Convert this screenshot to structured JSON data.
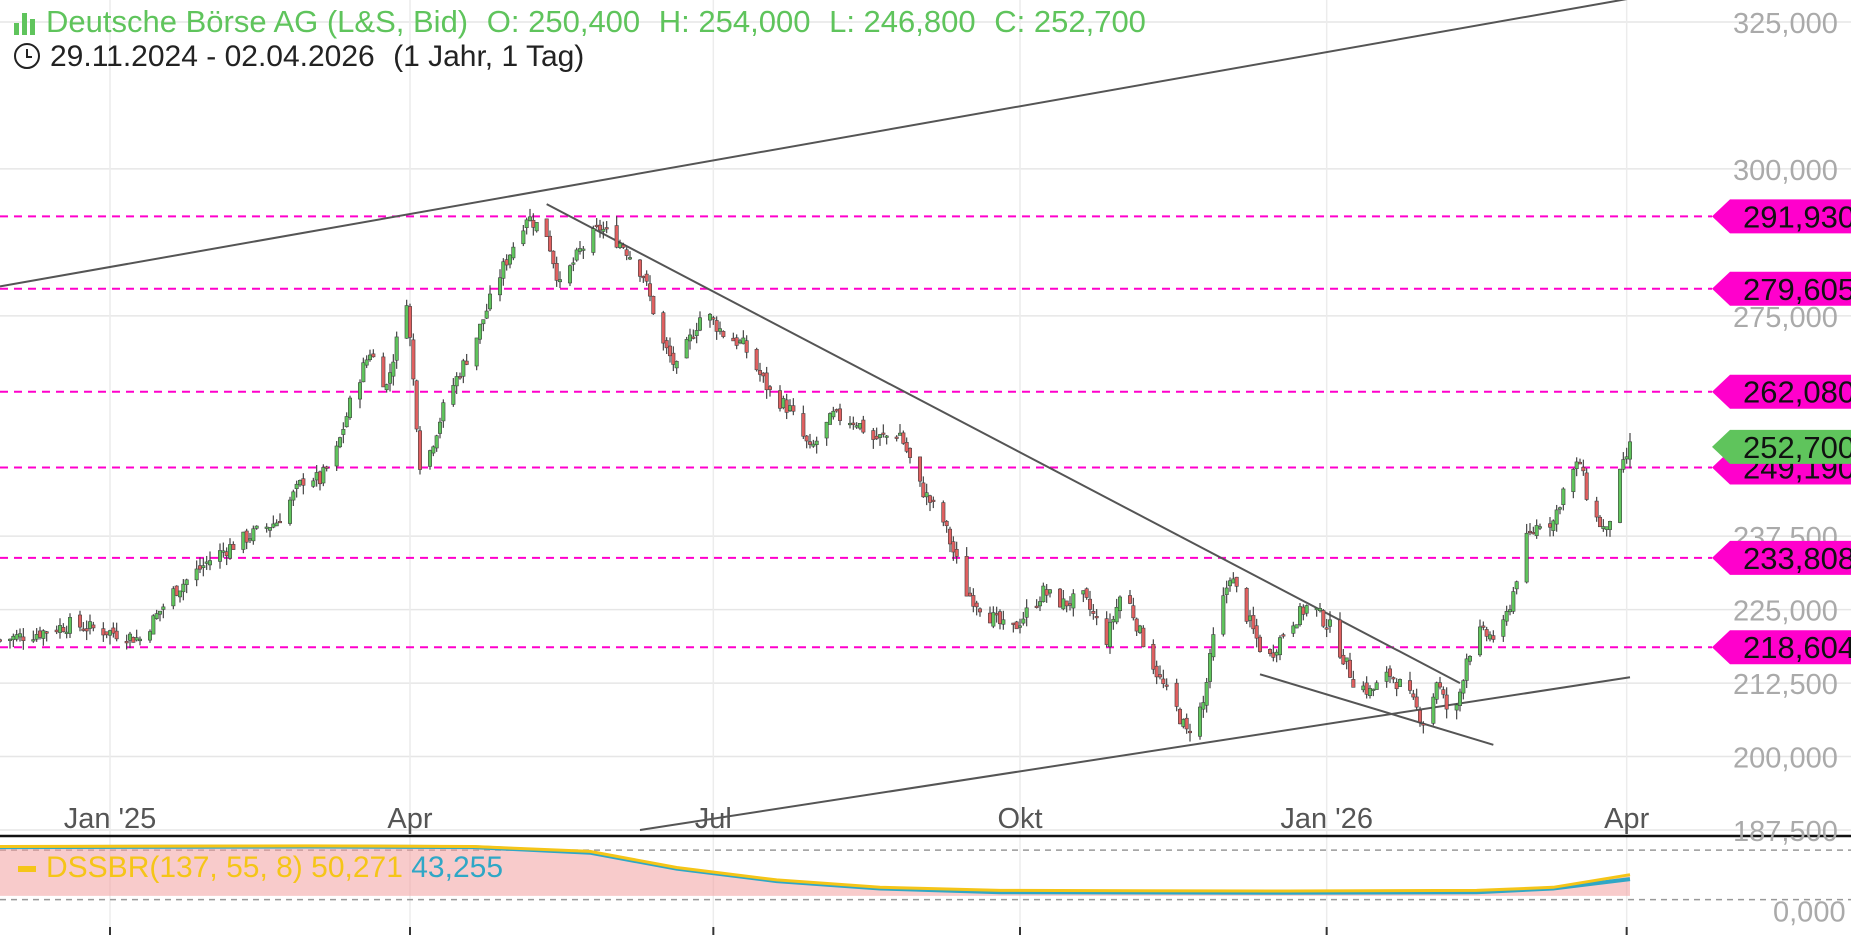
{
  "header": {
    "instrument": "Deutsche Börse AG (L&S, Bid)",
    "open": "O: 250,400",
    "high": "H: 254,000",
    "low": "L: 246,800",
    "close": "C: 252,700",
    "date_range": "29.11.2024 - 02.04.2026",
    "period": "(1 Jahr, 1 Tag)"
  },
  "indicator": {
    "label": "DSSBR(137, 55, 8)",
    "value1": "50,271",
    "value2": "43,255",
    "axis_labels": [
      "0,000"
    ]
  },
  "colors": {
    "up": "#5fc45c",
    "down": "#e06060",
    "level": "#ff00cc",
    "current": "#5fc45c",
    "trend": "#555555",
    "ind_yellow": "#f5c518",
    "ind_blue": "#2fa7c6",
    "ind_fill": "#f2a0a0"
  },
  "chart_data": {
    "type": "candlestick",
    "x_range": [
      "2024-11-29",
      "2026-04-02"
    ],
    "x_ticks": [
      {
        "date": "2025-01-01",
        "label": "Jan '25"
      },
      {
        "date": "2025-04-01",
        "label": "Apr"
      },
      {
        "date": "2025-07-01",
        "label": "Jul"
      },
      {
        "date": "2025-10-01",
        "label": "Okt"
      },
      {
        "date": "2026-01-01",
        "label": "Jan '26"
      },
      {
        "date": "2026-04-01",
        "label": "Apr"
      }
    ],
    "ylim": [
      187.5,
      325.0
    ],
    "y_ticks": [
      {
        "value": 325.0,
        "label": "325,000"
      },
      {
        "value": 300.0,
        "label": "300,000"
      },
      {
        "value": 275.0,
        "label": "275,000"
      },
      {
        "value": 237.5,
        "label": "237,500"
      },
      {
        "value": 225.0,
        "label": "225,000"
      },
      {
        "value": 212.5,
        "label": "212,500"
      },
      {
        "value": 200.0,
        "label": "200,000"
      },
      {
        "value": 187.5,
        "label": "187,500"
      }
    ],
    "levels": [
      {
        "value": 291.93,
        "label": "291,930"
      },
      {
        "value": 279.605,
        "label": "279,605"
      },
      {
        "value": 262.08,
        "label": "262,080"
      },
      {
        "value": 249.19,
        "label": "249,190"
      },
      {
        "value": 233.808,
        "label": "233,808"
      },
      {
        "value": 218.604,
        "label": "218,604"
      }
    ],
    "current": {
      "value": 252.7,
      "label": "252,700"
    },
    "trendlines": [
      {
        "from": {
          "date": "2024-11-29",
          "value": 280.0
        },
        "to": {
          "date": "2026-04-02",
          "value": 329.0
        }
      },
      {
        "from": {
          "date": "2025-05-12",
          "value": 294.0
        },
        "to": {
          "date": "2026-02-10",
          "value": 212.5
        }
      },
      {
        "from": {
          "date": "2025-06-09",
          "value": 187.5
        },
        "to": {
          "date": "2026-04-02",
          "value": 213.5
        }
      },
      {
        "from": {
          "date": "2025-12-12",
          "value": 214.0
        },
        "to": {
          "date": "2026-02-20",
          "value": 202.0
        }
      }
    ],
    "path": [
      {
        "date": "2024-11-29",
        "value": 219.8
      },
      {
        "date": "2024-12-10",
        "value": 221.0
      },
      {
        "date": "2024-12-20",
        "value": 222.5
      },
      {
        "date": "2025-01-03",
        "value": 221.0
      },
      {
        "date": "2025-01-10",
        "value": 220.0
      },
      {
        "date": "2025-01-20",
        "value": 228.0
      },
      {
        "date": "2025-02-01",
        "value": 234.0
      },
      {
        "date": "2025-02-10",
        "value": 237.0
      },
      {
        "date": "2025-02-20",
        "value": 240.0
      },
      {
        "date": "2025-03-01",
        "value": 248.0
      },
      {
        "date": "2025-03-05",
        "value": 247.0
      },
      {
        "date": "2025-03-10",
        "value": 252.0
      },
      {
        "date": "2025-03-15",
        "value": 262.0
      },
      {
        "date": "2025-03-20",
        "value": 269.0
      },
      {
        "date": "2025-03-25",
        "value": 263.0
      },
      {
        "date": "2025-03-31",
        "value": 278.0
      },
      {
        "date": "2025-04-04",
        "value": 250.0
      },
      {
        "date": "2025-04-07",
        "value": 252.0
      },
      {
        "date": "2025-04-12",
        "value": 261.0
      },
      {
        "date": "2025-04-20",
        "value": 270.0
      },
      {
        "date": "2025-04-28",
        "value": 282.0
      },
      {
        "date": "2025-05-02",
        "value": 287.0
      },
      {
        "date": "2025-05-06",
        "value": 292.0
      },
      {
        "date": "2025-05-12",
        "value": 289.0
      },
      {
        "date": "2025-05-16",
        "value": 280.0
      },
      {
        "date": "2025-05-22",
        "value": 286.0
      },
      {
        "date": "2025-05-28",
        "value": 290.0
      },
      {
        "date": "2025-06-04",
        "value": 287.0
      },
      {
        "date": "2025-06-10",
        "value": 282.0
      },
      {
        "date": "2025-06-16",
        "value": 270.0
      },
      {
        "date": "2025-06-20",
        "value": 266.0
      },
      {
        "date": "2025-06-28",
        "value": 276.0
      },
      {
        "date": "2025-07-04",
        "value": 272.0
      },
      {
        "date": "2025-07-10",
        "value": 270.0
      },
      {
        "date": "2025-07-18",
        "value": 262.0
      },
      {
        "date": "2025-07-24",
        "value": 259.0
      },
      {
        "date": "2025-07-30",
        "value": 252.0
      },
      {
        "date": "2025-08-06",
        "value": 258.0
      },
      {
        "date": "2025-08-13",
        "value": 257.0
      },
      {
        "date": "2025-08-18",
        "value": 254.0
      },
      {
        "date": "2025-08-26",
        "value": 255.0
      },
      {
        "date": "2025-09-01",
        "value": 246.0
      },
      {
        "date": "2025-09-08",
        "value": 240.0
      },
      {
        "date": "2025-09-15",
        "value": 228.0
      },
      {
        "date": "2025-09-22",
        "value": 224.0
      },
      {
        "date": "2025-09-28",
        "value": 221.0
      },
      {
        "date": "2025-10-08",
        "value": 228.0
      },
      {
        "date": "2025-10-14",
        "value": 226.0
      },
      {
        "date": "2025-10-20",
        "value": 227.0
      },
      {
        "date": "2025-10-27",
        "value": 220.0
      },
      {
        "date": "2025-11-01",
        "value": 229.0
      },
      {
        "date": "2025-11-06",
        "value": 221.0
      },
      {
        "date": "2025-11-12",
        "value": 213.0
      },
      {
        "date": "2025-11-17",
        "value": 208.0
      },
      {
        "date": "2025-11-20",
        "value": 204.0
      },
      {
        "date": "2025-11-25",
        "value": 209.0
      },
      {
        "date": "2025-11-28",
        "value": 220.0
      },
      {
        "date": "2025-12-03",
        "value": 231.0
      },
      {
        "date": "2025-12-08",
        "value": 224.0
      },
      {
        "date": "2025-12-14",
        "value": 216.0
      },
      {
        "date": "2025-12-20",
        "value": 222.0
      },
      {
        "date": "2025-12-27",
        "value": 226.0
      },
      {
        "date": "2026-01-02",
        "value": 222.0
      },
      {
        "date": "2026-01-09",
        "value": 213.0
      },
      {
        "date": "2026-01-14",
        "value": 211.0
      },
      {
        "date": "2026-01-20",
        "value": 214.0
      },
      {
        "date": "2026-01-25",
        "value": 211.0
      },
      {
        "date": "2026-01-31",
        "value": 205.0
      },
      {
        "date": "2026-02-03",
        "value": 213.0
      },
      {
        "date": "2026-02-08",
        "value": 205.0
      },
      {
        "date": "2026-02-12",
        "value": 217.0
      },
      {
        "date": "2026-02-16",
        "value": 221.0
      },
      {
        "date": "2026-02-22",
        "value": 220.0
      },
      {
        "date": "2026-02-26",
        "value": 228.0
      },
      {
        "date": "2026-03-01",
        "value": 236.0
      },
      {
        "date": "2026-03-06",
        "value": 240.0
      },
      {
        "date": "2026-03-10",
        "value": 240.0
      },
      {
        "date": "2026-03-14",
        "value": 247.0
      },
      {
        "date": "2026-03-18",
        "value": 250.0
      },
      {
        "date": "2026-03-21",
        "value": 242.0
      },
      {
        "date": "2026-03-26",
        "value": 238.0
      },
      {
        "date": "2026-03-29",
        "value": 246.0
      },
      {
        "date": "2026-04-02",
        "value": 252.7
      }
    ],
    "indicator": {
      "ylim": [
        -10,
        100
      ],
      "yellow": [
        {
          "date": "2024-11-29",
          "value": 96
        },
        {
          "date": "2025-03-01",
          "value": 97
        },
        {
          "date": "2025-04-20",
          "value": 96
        },
        {
          "date": "2025-05-25",
          "value": 88
        },
        {
          "date": "2025-06-20",
          "value": 62
        },
        {
          "date": "2025-07-20",
          "value": 42
        },
        {
          "date": "2025-08-20",
          "value": 30
        },
        {
          "date": "2025-09-25",
          "value": 25
        },
        {
          "date": "2025-12-20",
          "value": 24
        },
        {
          "date": "2026-02-15",
          "value": 25
        },
        {
          "date": "2026-03-10",
          "value": 30
        },
        {
          "date": "2026-04-02",
          "value": 50.271
        }
      ],
      "blue": [
        {
          "date": "2024-11-29",
          "value": 95
        },
        {
          "date": "2025-03-01",
          "value": 96
        },
        {
          "date": "2025-04-20",
          "value": 95
        },
        {
          "date": "2025-05-25",
          "value": 86
        },
        {
          "date": "2025-06-20",
          "value": 60
        },
        {
          "date": "2025-07-20",
          "value": 40
        },
        {
          "date": "2025-08-20",
          "value": 28
        },
        {
          "date": "2025-09-25",
          "value": 22
        },
        {
          "date": "2025-12-20",
          "value": 21
        },
        {
          "date": "2026-02-15",
          "value": 22
        },
        {
          "date": "2026-03-10",
          "value": 28
        },
        {
          "date": "2026-04-02",
          "value": 43.255
        }
      ]
    }
  }
}
